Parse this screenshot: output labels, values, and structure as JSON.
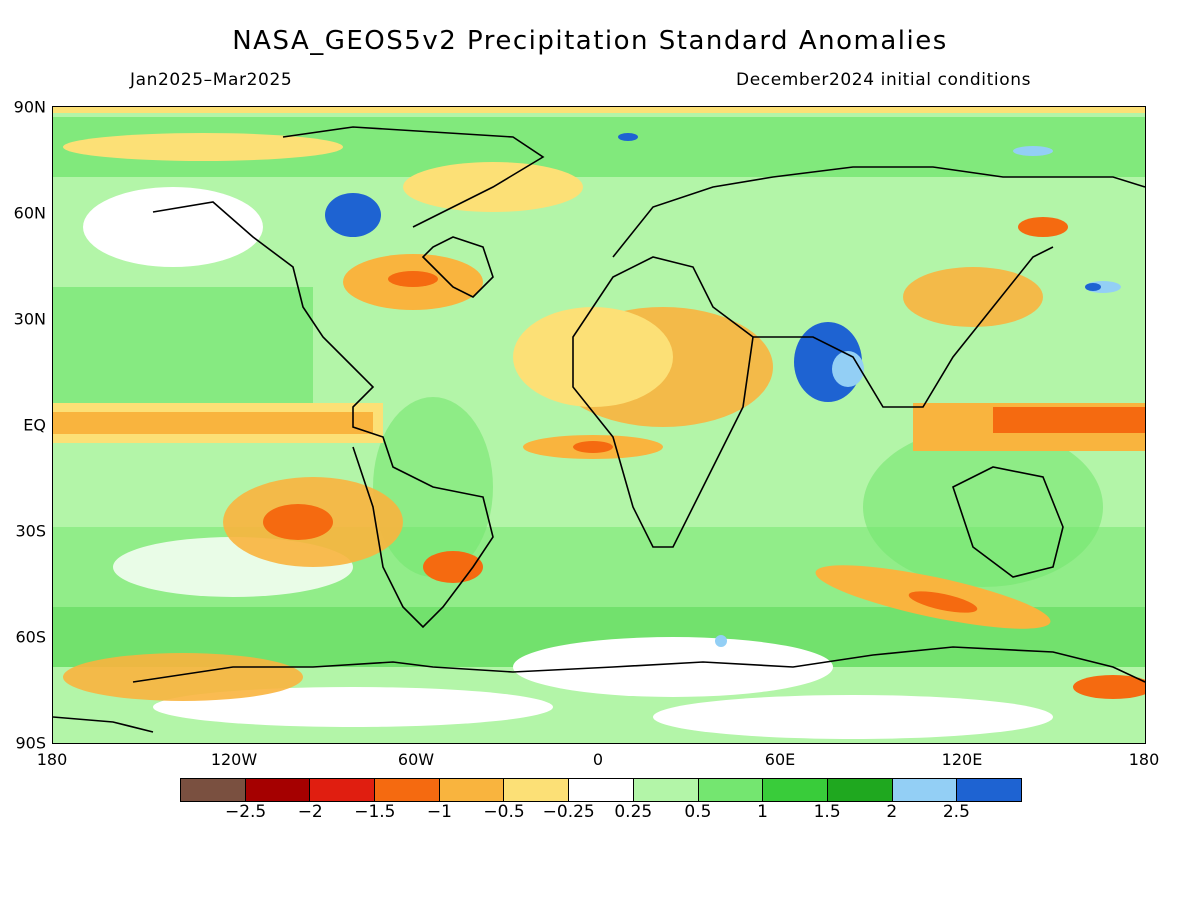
{
  "title": "NASA_GEOS5v2 Precipitation Standard Anomalies",
  "period": "Jan2025–Mar2025",
  "init": "December2024 initial conditions",
  "lat_labels": [
    "90N",
    "60N",
    "30N",
    "EQ",
    "30S",
    "60S",
    "90S"
  ],
  "lon_labels": [
    "180",
    "120W",
    "60W",
    "0",
    "60E",
    "120E",
    "180"
  ],
  "colorbar": {
    "colors": [
      "#7a5040",
      "#a50000",
      "#e01e10",
      "#f56a10",
      "#f9b43e",
      "#fce076",
      "#ffffff",
      "#b3f5a8",
      "#74e670",
      "#39cc3a",
      "#1fa81f",
      "#93cff5",
      "#1e63d2"
    ],
    "labels": [
      "−2.5",
      "−2",
      "−1.5",
      "−1",
      "−0.5",
      "−0.25",
      "0.25",
      "0.5",
      "1",
      "1.5",
      "2",
      "2.5"
    ]
  }
}
